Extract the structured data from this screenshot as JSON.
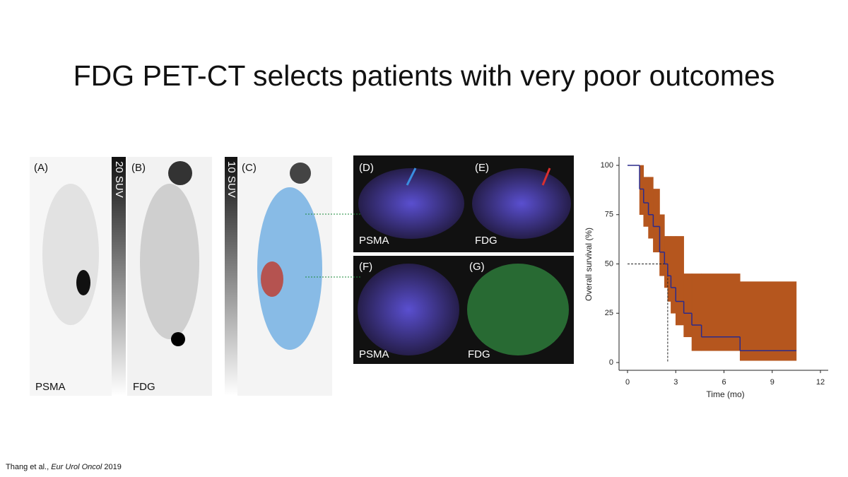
{
  "slide": {
    "title": "FDG PET-CT selects patients with very poor outcomes",
    "citation": {
      "authors": "Thang et al.,",
      "journal": "Eur Urol Oncol",
      "year": "2019"
    }
  },
  "figure": {
    "panels": [
      {
        "label": "(A)",
        "caption": "PSMA"
      },
      {
        "label": "(B)",
        "caption": "FDG"
      },
      {
        "label": "(C)"
      },
      {
        "label": "(D)",
        "caption": "PSMA"
      },
      {
        "label": "(E)",
        "caption": "FDG"
      },
      {
        "label": "(F)",
        "caption": "PSMA"
      },
      {
        "label": "(G)",
        "caption": "FDG"
      }
    ],
    "scale_bars": [
      "20 SUV",
      "10 SUV"
    ]
  },
  "chart_data": {
    "type": "step",
    "xlabel": "Time (mo)",
    "ylabel": "Overall survival (%)",
    "x": [
      0,
      0.75,
      1.0,
      1.3,
      1.6,
      2.0,
      2.3,
      2.5,
      2.7,
      3.0,
      3.5,
      4.0,
      4.6,
      7.0,
      10.5
    ],
    "series": [
      {
        "color": "#2a2a8c",
        "values": [
          100,
          88,
          81,
          75,
          69,
          56,
          50,
          44,
          38,
          31,
          25,
          19,
          13,
          6,
          6
        ]
      }
    ],
    "band": {
      "color": "#b5561e",
      "upper": [
        100,
        100,
        94,
        94,
        88,
        75,
        64,
        64,
        64,
        64,
        45,
        45,
        45,
        41,
        41
      ],
      "lower": [
        100,
        75,
        69,
        63,
        56,
        44,
        38,
        31,
        25,
        19,
        13,
        6,
        6,
        1,
        1
      ]
    },
    "median": {
      "x": 2.5,
      "y": 50
    },
    "xlim": [
      0,
      12
    ],
    "ylim": [
      0,
      100
    ],
    "xticks": [
      0,
      3,
      6,
      9,
      12
    ],
    "yticks": [
      0,
      25,
      50,
      75,
      100
    ]
  }
}
